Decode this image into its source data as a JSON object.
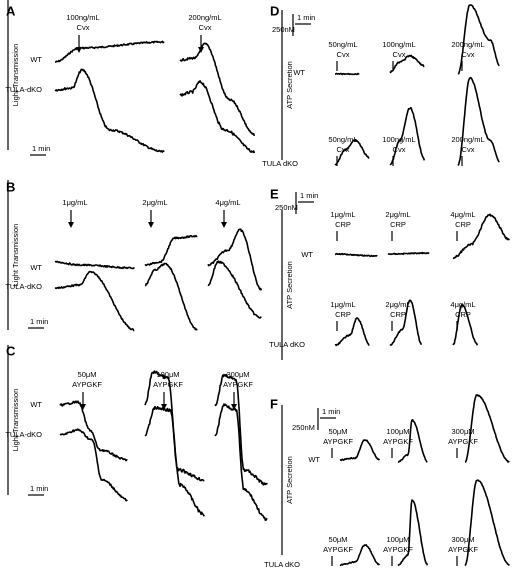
{
  "panels": [
    {
      "letter": "A",
      "y_label": "Light Transmission",
      "time_scale": "1 min",
      "rows": [
        "WT",
        "TULA-dKO"
      ],
      "stimuli": [
        [
          "100ng/mL",
          "Cvx"
        ],
        [
          "200ng/mL",
          "Cvx"
        ]
      ]
    },
    {
      "letter": "B",
      "y_label": "Light Transmission",
      "time_scale": "1 min",
      "rows": [
        "WT",
        "TULA-dKO"
      ],
      "stimuli": [
        [
          "1μg/mL"
        ],
        [
          "2μg/mL"
        ],
        [
          "4μg/mL"
        ]
      ]
    },
    {
      "letter": "C",
      "y_label": "Light Transmission",
      "time_scale": "1 min",
      "rows": [
        "WT",
        "TULA-dKO"
      ],
      "stimuli": [
        [
          "50μM",
          "AYPGKF"
        ],
        [
          "100μM",
          "AYPGKF"
        ],
        [
          "300μM",
          "AYPGKF"
        ]
      ]
    },
    {
      "letter": "D",
      "y_label": "ATP Secretion",
      "time_scale": "1 min",
      "conc_scale": "250nM",
      "rows": [
        "WT",
        "TULA dKO"
      ],
      "stimuli_rows": [
        [
          [
            "50ng/mL",
            "Cvx"
          ],
          [
            "100ng/mL",
            "Cvx"
          ],
          [
            "200ng/mL",
            "Cvx"
          ]
        ],
        [
          [
            "50ng/mL",
            "Cvx"
          ],
          [
            "100ng/mL",
            "Cvx"
          ],
          [
            "200ng/mL",
            "Cvx"
          ]
        ]
      ]
    },
    {
      "letter": "E",
      "y_label": "ATP Secretion",
      "time_scale": "1 min",
      "conc_scale": "250nM",
      "rows": [
        "WT",
        "TULA dKO"
      ],
      "stimuli_rows": [
        [
          [
            "1μg/mL",
            "CRP"
          ],
          [
            "2μg/mL",
            "CRP"
          ],
          [
            "4μg/mL",
            "CRP"
          ]
        ],
        [
          [
            "1μg/mL",
            "CRP"
          ],
          [
            "2μg/mL",
            "CRP"
          ],
          [
            "4μg/mL",
            "CRP"
          ]
        ]
      ]
    },
    {
      "letter": "F",
      "y_label": "ATP Secretion",
      "time_scale": "1 min",
      "conc_scale": "250nM",
      "rows": [
        "WT",
        "TULA dKO"
      ],
      "stimuli_rows": [
        [
          [
            "50μM",
            "AYPGKF"
          ],
          [
            "100μM",
            "AYPGKF"
          ],
          [
            "300μM",
            "AYPGKF"
          ]
        ],
        [
          [
            "50μM",
            "AYPGKF"
          ],
          [
            "100μM",
            "AYPGKF"
          ],
          [
            "300μM",
            "AYPGKF"
          ]
        ]
      ]
    }
  ]
}
